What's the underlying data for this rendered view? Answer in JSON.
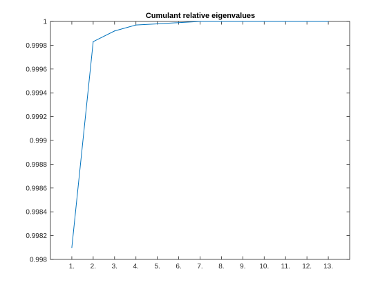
{
  "chart_data": {
    "type": "line",
    "title": "Cumulant relative eigenvalues",
    "xlabel": "",
    "ylabel": "",
    "x": [
      1,
      2,
      3,
      4,
      5,
      6,
      7,
      8,
      9,
      10,
      11,
      12,
      13
    ],
    "x_tick_labels": [
      "1.",
      "2.",
      "3.",
      "4.",
      "5.",
      "6.",
      "7.",
      "8.",
      "9.",
      "10.",
      "11.",
      "12.",
      "13."
    ],
    "xlim": [
      0,
      14
    ],
    "ylim": [
      0.998,
      1
    ],
    "y_ticks": [
      0.998,
      0.9982,
      0.9984,
      0.9986,
      0.9988,
      0.999,
      0.9992,
      0.9994,
      0.9996,
      0.9998,
      1
    ],
    "y_tick_labels": [
      "0.998",
      "0.9982",
      "0.9984",
      "0.9986",
      "0.9988",
      "0.999",
      "0.9992",
      "0.9994",
      "0.9996",
      "0.9998",
      "1"
    ],
    "series": [
      {
        "values": [
          0.9981,
          0.99983,
          0.99992,
          0.99997,
          0.99998,
          0.99999,
          1.0,
          1.0,
          1.0,
          1.0,
          1.0,
          1.0,
          1.0
        ]
      }
    ],
    "grid": false,
    "legend": "none",
    "line_color": "#0072BD"
  }
}
